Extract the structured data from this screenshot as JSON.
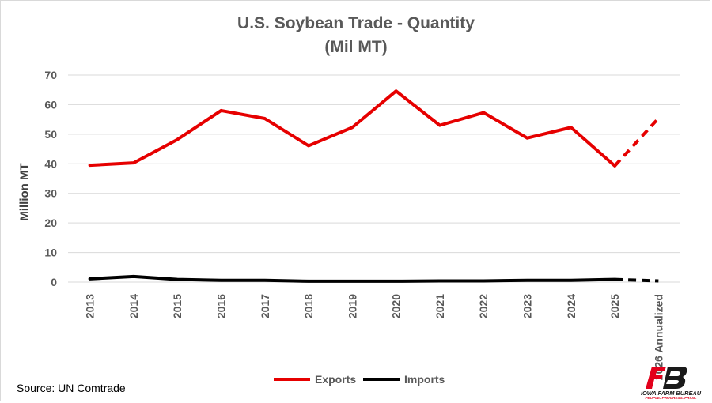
{
  "title_line1": "U.S. Soybean Trade - Quantity",
  "title_line2": "(Mil MT)",
  "ylabel": "Million MT",
  "source": "Source: UN Comtrade",
  "logo": {
    "text": "IOWA FARM BUREAU",
    "tagline": "PEOPLE. PROGRESS. PRIDE.",
    "color": "#e3001b"
  },
  "chart_data": {
    "type": "line",
    "title": "U.S. Soybean Trade - Quantity (Mil MT)",
    "ylabel": "Million MT",
    "ylim": [
      0,
      70
    ],
    "yticks": [
      0,
      10,
      20,
      30,
      40,
      50,
      60,
      70
    ],
    "grid": true,
    "legend": "bottom",
    "categories": [
      "2013",
      "2014",
      "2015",
      "2016",
      "2017",
      "2018",
      "2019",
      "2020",
      "2021",
      "2022",
      "2023",
      "2024",
      "2025",
      "2026 Annualized"
    ],
    "dashed_from_category": "2025",
    "series": [
      {
        "name": "Exports",
        "color": "#e60000",
        "values": [
          39.5,
          40.3,
          48.2,
          58.0,
          55.3,
          46.1,
          52.3,
          64.6,
          53.0,
          57.3,
          48.7,
          52.3,
          39.3,
          55.4
        ]
      },
      {
        "name": "Imports",
        "color": "#000000",
        "values": [
          1.1,
          1.9,
          0.9,
          0.6,
          0.6,
          0.3,
          0.3,
          0.3,
          0.4,
          0.4,
          0.6,
          0.6,
          0.9,
          0.4
        ]
      }
    ]
  }
}
